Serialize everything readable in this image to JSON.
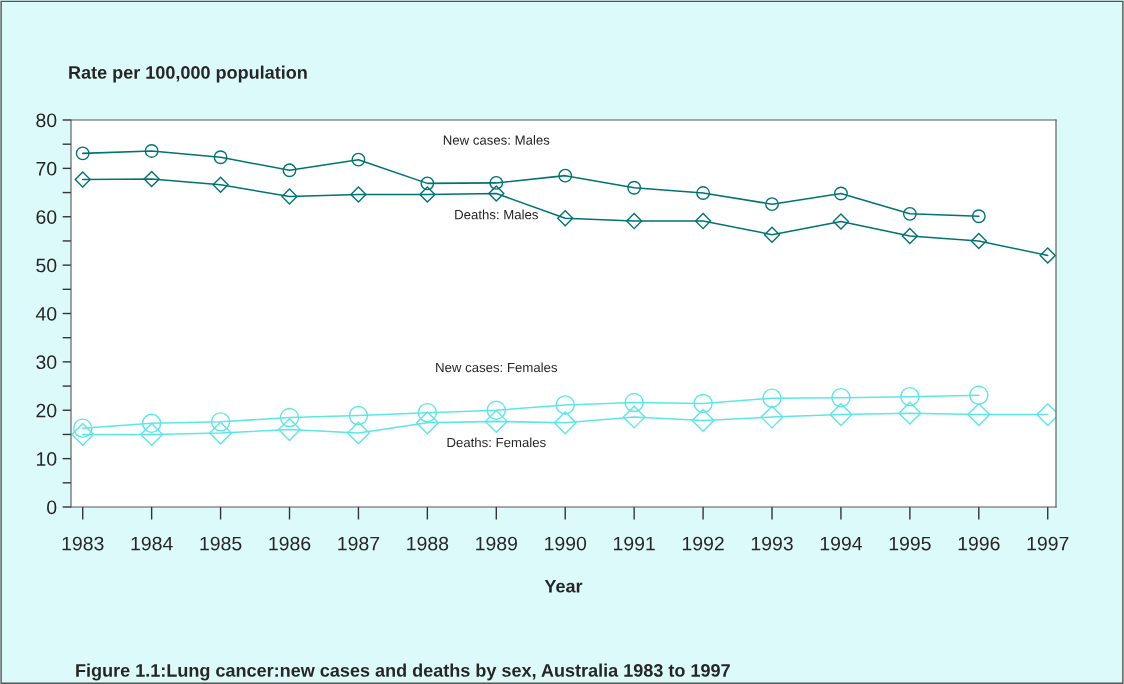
{
  "chart_data": {
    "type": "line",
    "ylabel": "Rate per 100,000 population",
    "xlabel": "Year",
    "x": [
      1983,
      1984,
      1985,
      1986,
      1987,
      1988,
      1989,
      1990,
      1991,
      1992,
      1993,
      1994,
      1995,
      1996,
      1997
    ],
    "series": [
      {
        "name": "New cases: Males",
        "color": "#007373",
        "marker": "circle",
        "values": [
          73.1,
          73.6,
          72.3,
          69.6,
          71.8,
          66.9,
          67.0,
          68.5,
          66.0,
          64.9,
          62.6,
          64.8,
          60.6,
          60.1,
          null
        ]
      },
      {
        "name": "Deaths: Males",
        "color": "#007373",
        "marker": "diamond",
        "values": [
          67.7,
          67.8,
          66.6,
          64.2,
          64.6,
          64.6,
          64.8,
          59.7,
          59.1,
          59.1,
          56.3,
          59.0,
          56.0,
          55.0,
          52.0
        ]
      },
      {
        "name": "New cases: Females",
        "color": "#5ce6e6",
        "marker": "circle",
        "values": [
          16.3,
          17.3,
          17.6,
          18.5,
          18.9,
          19.5,
          20.0,
          21.1,
          21.6,
          21.4,
          22.5,
          22.6,
          22.8,
          23.1,
          null
        ]
      },
      {
        "name": "Deaths: Females",
        "color": "#5ce6e6",
        "marker": "diamond",
        "values": [
          15.0,
          15.0,
          15.3,
          16.0,
          15.3,
          17.4,
          17.7,
          17.4,
          18.6,
          17.9,
          18.6,
          19.1,
          19.4,
          19.1,
          19.1
        ]
      }
    ],
    "xlim": [
      1982.83,
      1997.12
    ],
    "xticks": [
      1983,
      1984,
      1985,
      1986,
      1987,
      1988,
      1989,
      1990,
      1991,
      1992,
      1993,
      1994,
      1995,
      1996,
      1997
    ],
    "ylim": [
      0,
      80
    ],
    "yticks": [
      0,
      {
        "value": 5,
        "label": null
      },
      10,
      {
        "value": 15,
        "label": null
      },
      20,
      {
        "value": 25,
        "label": null
      },
      30,
      {
        "value": 35,
        "label": null
      },
      40,
      {
        "value": 45,
        "label": null
      },
      50,
      {
        "value": 55,
        "label": null
      },
      60,
      {
        "value": 65,
        "label": null
      },
      70,
      {
        "value": 75,
        "label": null
      },
      80
    ],
    "grid": false,
    "legend": false,
    "line_style": "solid",
    "annotations": [
      "Figure 1.1:Lung cancer:new cases and deaths by sex, Australia 1983 to 1997"
    ]
  }
}
